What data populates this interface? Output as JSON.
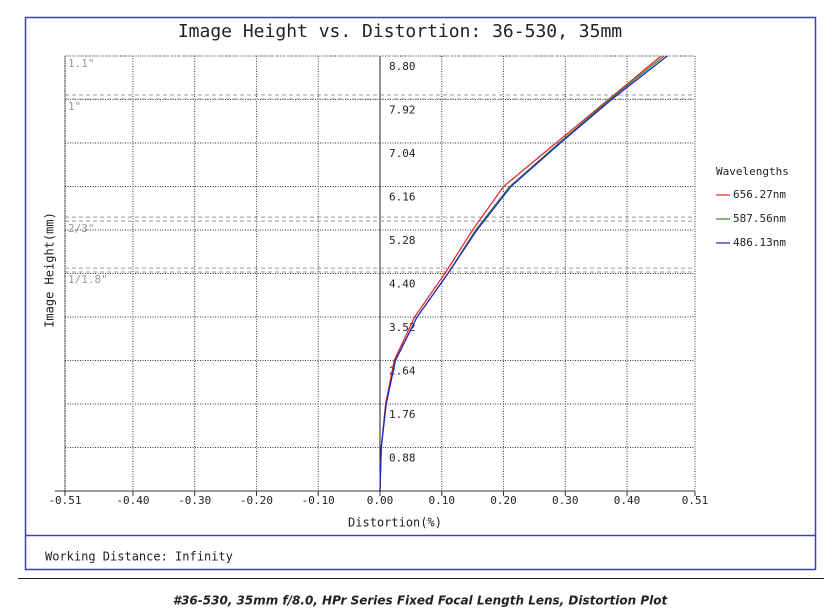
{
  "chart_data": {
    "type": "line",
    "title": "Image Height vs. Distortion: 36-530, 35mm",
    "x_label": "Distortion(%)",
    "y_label": "Image Height(mm)",
    "xlim": [
      -0.51,
      0.51
    ],
    "xticks": [
      -0.51,
      {
        "value": -0.4,
        "label": "-0.40"
      },
      {
        "value": -0.3,
        "label": "-0.30"
      },
      {
        "value": -0.2,
        "label": "-0.20"
      },
      {
        "value": -0.1,
        "label": "-0.10"
      },
      {
        "value": 0,
        "label": "0.00"
      },
      {
        "value": 0.1,
        "label": "0.10"
      },
      {
        "value": 0.2,
        "label": "0.20"
      },
      {
        "value": 0.3,
        "label": "0.30"
      },
      {
        "value": 0.4,
        "label": "0.40"
      },
      0.51
    ],
    "ylim": [
      0,
      8.8
    ],
    "yticks": [
      0.88,
      1.76,
      2.64,
      3.52,
      {
        "value": 4.4,
        "label": "4.40"
      },
      5.28,
      6.16,
      7.04,
      7.92,
      {
        "value": 8.8,
        "label": "8.80"
      }
    ],
    "grid": true,
    "y": [
      0,
      0.88,
      1.76,
      2.64,
      3.52,
      4.4,
      5.28,
      6.16,
      7.04,
      7.92,
      8.8
    ],
    "legend_title": "Wavelengths",
    "series": [
      {
        "name": "656.27nm",
        "color": "#e8202a",
        "x": [
          0,
          0.002,
          0.009,
          0.023,
          0.056,
          0.105,
          0.15,
          0.2,
          0.285,
          0.37,
          0.455
        ]
      },
      {
        "name": "587.56nm",
        "color": "#2a8a2a",
        "x": [
          0,
          0.002,
          0.01,
          0.025,
          0.06,
          0.11,
          0.155,
          0.21,
          0.29,
          0.372,
          0.46
        ]
      },
      {
        "name": "486.13nm",
        "color": "#2020c0",
        "x": [
          0,
          0.002,
          0.01,
          0.025,
          0.06,
          0.11,
          0.157,
          0.212,
          0.292,
          0.375,
          0.465
        ]
      }
    ],
    "sensor_lines": [
      {
        "label": "1.1\"",
        "values": [
          8.8
        ]
      },
      {
        "label": "1\"",
        "values": [
          8.01,
          7.93
        ]
      },
      {
        "label": "2/3\"",
        "values": [
          5.54,
          5.46
        ]
      },
      {
        "label": "1/1.8\"",
        "values": [
          4.51,
          4.43
        ]
      }
    ],
    "footer": "Working Distance: Infinity",
    "caption": "#36-530, 35mm f/8.0, HPr Series Fixed Focal Length Lens, Distortion Plot"
  }
}
